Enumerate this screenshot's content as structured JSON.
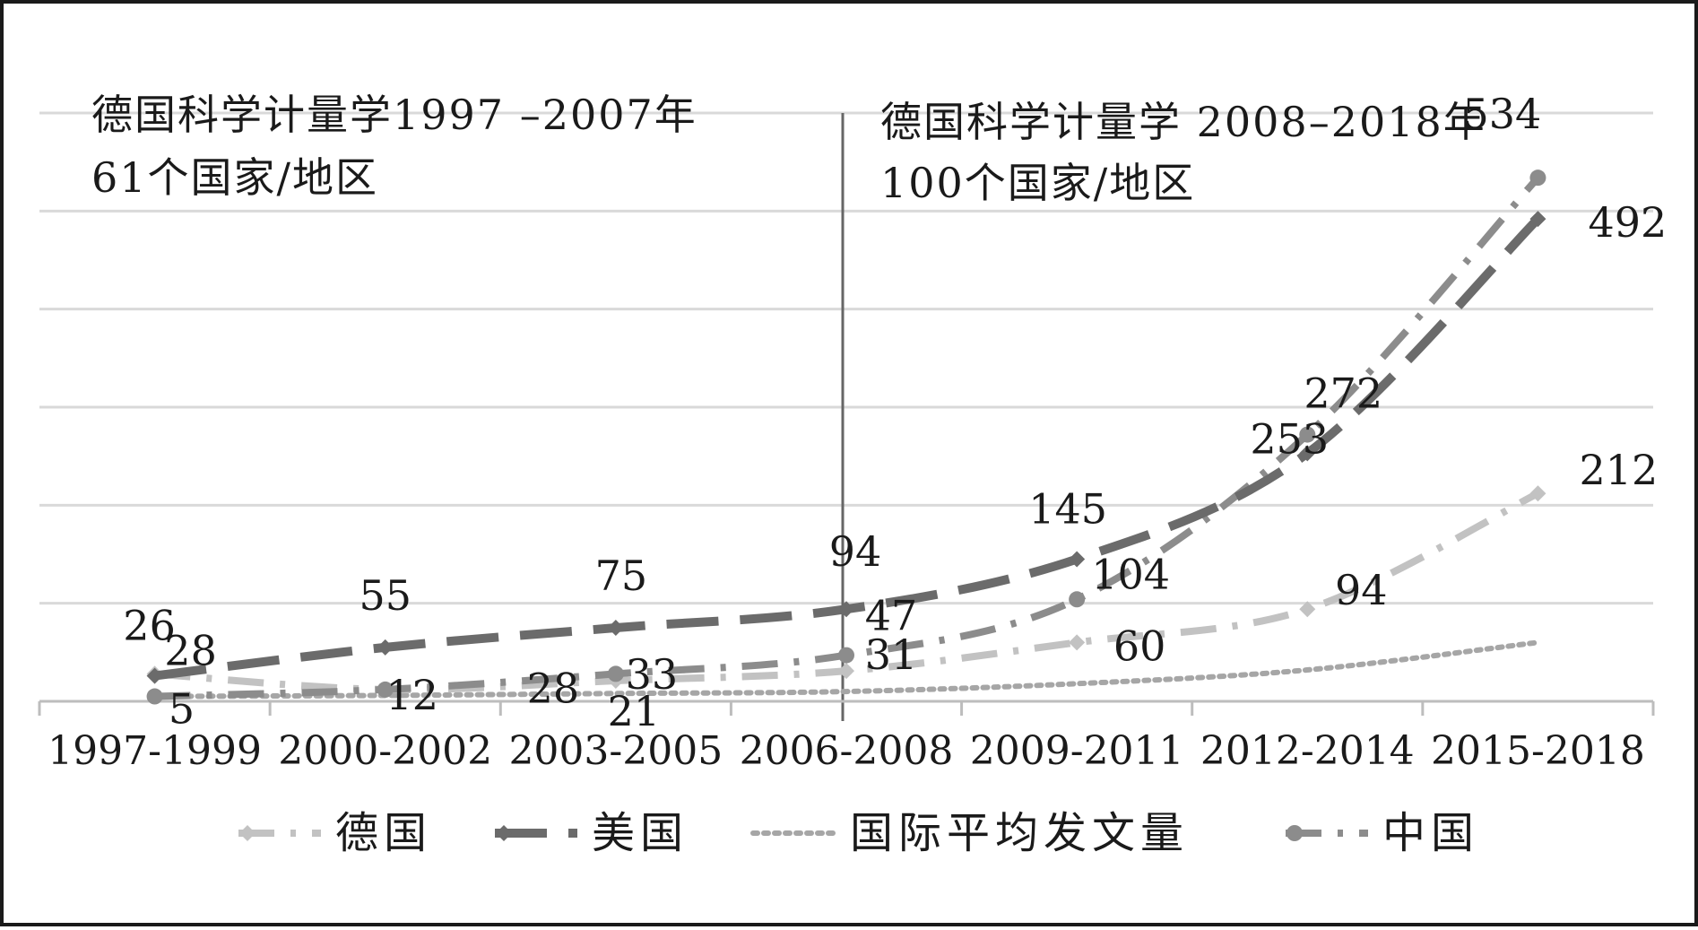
{
  "chart_data": {
    "type": "line",
    "categories": [
      "1997-1999",
      "2000-2002",
      "2003-2005",
      "2006-2008",
      "2009-2011",
      "2012-2014",
      "2015-2018"
    ],
    "ylim": [
      0,
      600
    ],
    "grid": true,
    "legend_position": "bottom",
    "series": [
      {
        "name": "德国",
        "values": [
          28,
          12,
          21,
          31,
          60,
          94,
          212
        ],
        "color": "#c2c2c2",
        "style": "dash-dot",
        "marker": "diamond",
        "label_text": [
          "28",
          "12",
          "21",
          "31",
          "60",
          "94",
          "212"
        ]
      },
      {
        "name": "美国",
        "values": [
          26,
          55,
          75,
          94,
          145,
          253,
          492
        ],
        "color": "#6b6b6b",
        "style": "long-dash",
        "marker": "diamond",
        "label_text": [
          "26",
          "55",
          "75",
          "94",
          "145",
          "253",
          "492"
        ]
      },
      {
        "name": "国际平均发文量",
        "values": [
          5,
          6,
          8,
          10,
          18,
          32,
          60
        ],
        "color": "#a6a6a6",
        "style": "dotted",
        "marker": "none",
        "label_text": [
          "5",
          "",
          "",
          "",
          "",
          "",
          ""
        ]
      },
      {
        "name": "中国",
        "values": [
          5,
          12,
          28,
          47,
          104,
          272,
          534
        ],
        "color": "#8c8c8c",
        "style": "dash-dot",
        "marker": "circle",
        "label_text": [
          "",
          "",
          "28",
          "47",
          "104",
          "272",
          "534"
        ]
      }
    ],
    "extra_labels": [
      "33"
    ],
    "annotations": {
      "left_line1": "德国科学计量学1997 –2007年",
      "left_line2": "61个国家/地区",
      "right_line1": "德国科学计量学 2008–2018年",
      "right_line2": "100个国家/地区"
    }
  }
}
